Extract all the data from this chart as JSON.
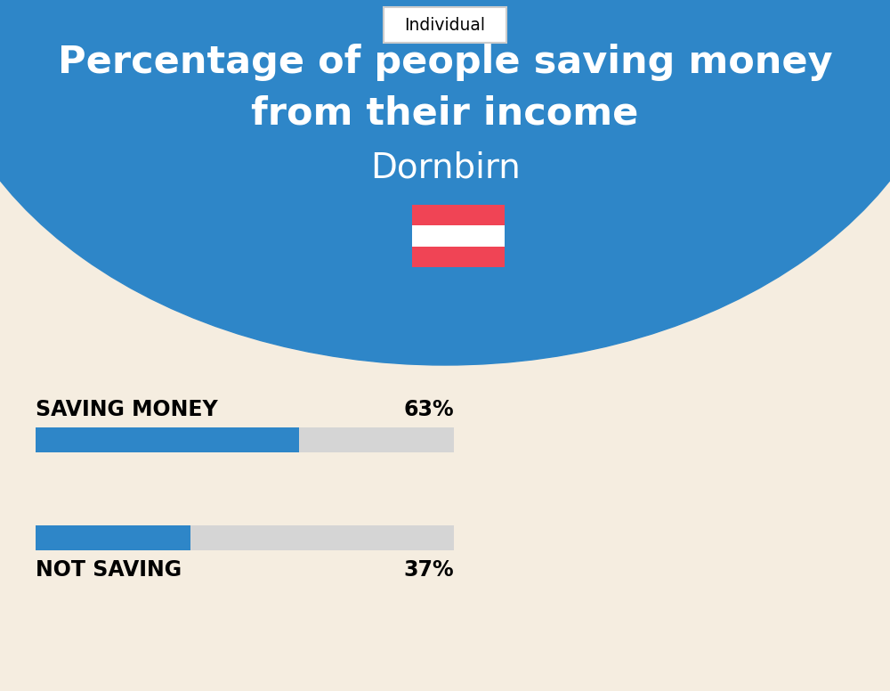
{
  "title_line1": "Percentage of people saving money",
  "title_line2": "from their income",
  "city": "Dornbirn",
  "tab_label": "Individual",
  "bg_circle_color": "#2e86c8",
  "bg_page_color": "#f5ede0",
  "title_color": "#ffffff",
  "city_color": "#ffffff",
  "bar_blue": "#2e86c8",
  "bar_gray": "#d5d5d5",
  "label_color": "#000000",
  "saving_label": "SAVING MONEY",
  "saving_value": 63,
  "saving_pct_text": "63%",
  "not_saving_label": "NOT SAVING",
  "not_saving_value": 37,
  "not_saving_pct_text": "37%",
  "tab_bg": "#ffffff",
  "tab_border": "#cccccc",
  "flag_red": "#f04455",
  "flag_white": "#ffffff"
}
